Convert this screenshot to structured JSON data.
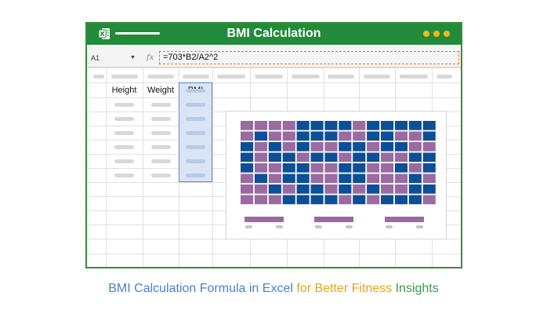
{
  "window": {
    "title": "BMI Calculation",
    "icon": "excel-icon"
  },
  "formula_bar": {
    "cell_ref": "A1",
    "fx_label": "fx",
    "formula": "=703*B2/A2^2"
  },
  "sheet": {
    "headers": [
      "Height",
      "Weight",
      "BMI"
    ]
  },
  "colors": {
    "titlebar": "#228b3a",
    "purple": "#9a6ba0",
    "blue": "#0d4f96",
    "highlight": "#d9e4f5"
  },
  "chart_data": {
    "type": "heatmap",
    "rows": 8,
    "cols": 14,
    "legend_swatches": 3
  },
  "caption": {
    "part1": "BMI Calculation Formula in Excel ",
    "part2": "for Better Fitness ",
    "part3": "Insights"
  }
}
